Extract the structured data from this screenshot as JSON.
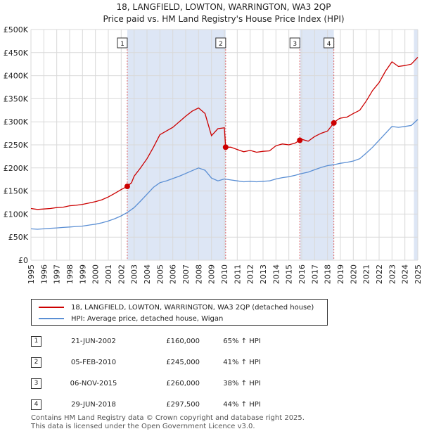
{
  "chart_data": {
    "type": "line",
    "title": "18, LANGFIELD, LOWTON, WARRINGTON, WA3 2QP",
    "subtitle": "Price paid vs. HM Land Registry's House Price Index (HPI)",
    "xlim": [
      1995,
      2025
    ],
    "ylim": [
      0,
      500000
    ],
    "x_ticks": [
      1995,
      1996,
      1997,
      1998,
      1999,
      2000,
      2001,
      2002,
      2003,
      2004,
      2005,
      2006,
      2007,
      2008,
      2009,
      2010,
      2011,
      2012,
      2013,
      2014,
      2015,
      2016,
      2017,
      2018,
      2019,
      2020,
      2021,
      2022,
      2023,
      2024,
      2025
    ],
    "y_ticks": [
      {
        "value": 0,
        "label": "£0"
      },
      {
        "value": 50000,
        "label": "£50K"
      },
      {
        "value": 100000,
        "label": "£100K"
      },
      {
        "value": 150000,
        "label": "£150K"
      },
      {
        "value": 200000,
        "label": "£200K"
      },
      {
        "value": 250000,
        "label": "£250K"
      },
      {
        "value": 300000,
        "label": "£300K"
      },
      {
        "value": 350000,
        "label": "£350K"
      },
      {
        "value": 400000,
        "label": "£400K"
      },
      {
        "value": 450000,
        "label": "£450K"
      },
      {
        "value": 500000,
        "label": "£500K"
      }
    ],
    "grid": true,
    "series": [
      {
        "name": "18, LANGFIELD, LOWTON, WARRINGTON, WA3 2QP (detached house)",
        "color": "#cc0000",
        "x": [
          1995,
          1995.5,
          1996,
          1996.5,
          1997,
          1997.5,
          1998,
          1998.5,
          1999,
          1999.5,
          2000,
          2000.5,
          2001,
          2001.5,
          2002,
          2002.47,
          2002.8,
          2003,
          2003.5,
          2004,
          2004.5,
          2005,
          2005.5,
          2006,
          2006.5,
          2007,
          2007.5,
          2008,
          2008.5,
          2009,
          2009.5,
          2010.0,
          2010.1,
          2010.5,
          2011,
          2011.5,
          2012,
          2012.5,
          2013,
          2013.5,
          2014,
          2014.5,
          2015,
          2015.5,
          2015.85,
          2016,
          2016.5,
          2017,
          2017.5,
          2018,
          2018.49,
          2018.8,
          2019,
          2019.5,
          2020,
          2020.5,
          2021,
          2021.5,
          2022,
          2022.5,
          2023,
          2023.5,
          2024,
          2024.5,
          2025
        ],
        "y": [
          112000,
          110000,
          111000,
          112000,
          114000,
          115000,
          118000,
          119000,
          121000,
          124000,
          127000,
          131000,
          137000,
          145000,
          153000,
          160000,
          168000,
          182000,
          200000,
          220000,
          245000,
          272000,
          280000,
          288000,
          300000,
          312000,
          323000,
          330000,
          318000,
          270000,
          285000,
          287000,
          245000,
          245000,
          240000,
          235000,
          238000,
          234000,
          236000,
          237000,
          248000,
          252000,
          250000,
          254000,
          260000,
          262000,
          258000,
          268000,
          275000,
          280000,
          297500,
          305000,
          308000,
          310000,
          318000,
          325000,
          345000,
          368000,
          385000,
          410000,
          430000,
          420000,
          422000,
          425000,
          440000
        ]
      },
      {
        "name": "HPI: Average price, detached house, Wigan",
        "color": "#5b8fd4",
        "x": [
          1995,
          1995.5,
          1996,
          1996.5,
          1997,
          1997.5,
          1998,
          1998.5,
          1999,
          1999.5,
          2000,
          2000.5,
          2001,
          2001.5,
          2002,
          2002.5,
          2003,
          2003.5,
          2004,
          2004.5,
          2005,
          2005.5,
          2006,
          2006.5,
          2007,
          2007.5,
          2008,
          2008.5,
          2009,
          2009.5,
          2010,
          2010.5,
          2011,
          2011.5,
          2012,
          2012.5,
          2013,
          2013.5,
          2014,
          2014.5,
          2015,
          2015.5,
          2016,
          2016.5,
          2017,
          2017.5,
          2018,
          2018.5,
          2019,
          2019.5,
          2020,
          2020.5,
          2021,
          2021.5,
          2022,
          2022.5,
          2023,
          2023.5,
          2024,
          2024.5,
          2025
        ],
        "y": [
          68000,
          67000,
          68000,
          69000,
          70000,
          71000,
          72000,
          73000,
          74000,
          76000,
          78000,
          81000,
          85000,
          90000,
          96000,
          104000,
          114000,
          128000,
          143000,
          158000,
          168000,
          172000,
          177000,
          182000,
          188000,
          194000,
          200000,
          195000,
          178000,
          172000,
          176000,
          174000,
          172000,
          170000,
          171000,
          170000,
          171000,
          172000,
          176000,
          179000,
          181000,
          184000,
          188000,
          191000,
          196000,
          201000,
          205000,
          207000,
          210000,
          212000,
          215000,
          220000,
          232000,
          245000,
          260000,
          275000,
          290000,
          288000,
          290000,
          292000,
          305000
        ]
      }
    ],
    "markers": [
      {
        "label": "1",
        "x": 2002.47,
        "y": 160000
      },
      {
        "label": "2",
        "x": 2010.1,
        "y": 245000
      },
      {
        "label": "3",
        "x": 2015.85,
        "y": 260000
      },
      {
        "label": "4",
        "x": 2018.49,
        "y": 297500
      }
    ],
    "highlight_color": "#dde6f5",
    "highlight_ranges": [
      [
        2002.47,
        2010.1
      ],
      [
        2015.85,
        2018.49
      ],
      [
        2024.7,
        2025
      ]
    ]
  },
  "legend": {
    "items": [
      {
        "label": "18, LANGFIELD, LOWTON, WARRINGTON, WA3 2QP (detached house)",
        "color": "#cc0000"
      },
      {
        "label": "HPI: Average price, detached house, Wigan",
        "color": "#5b8fd4"
      }
    ]
  },
  "sales": [
    {
      "num": "1",
      "date": "21-JUN-2002",
      "price": "£160,000",
      "hpi": "65% ↑ HPI"
    },
    {
      "num": "2",
      "date": "05-FEB-2010",
      "price": "£245,000",
      "hpi": "41% ↑ HPI"
    },
    {
      "num": "3",
      "date": "06-NOV-2015",
      "price": "£260,000",
      "hpi": "38% ↑ HPI"
    },
    {
      "num": "4",
      "date": "29-JUN-2018",
      "price": "£297,500",
      "hpi": "44% ↑ HPI"
    }
  ],
  "footer": {
    "line1": "Contains HM Land Registry data © Crown copyright and database right 2025.",
    "line2": "This data is licensed under the Open Government Licence v3.0."
  }
}
